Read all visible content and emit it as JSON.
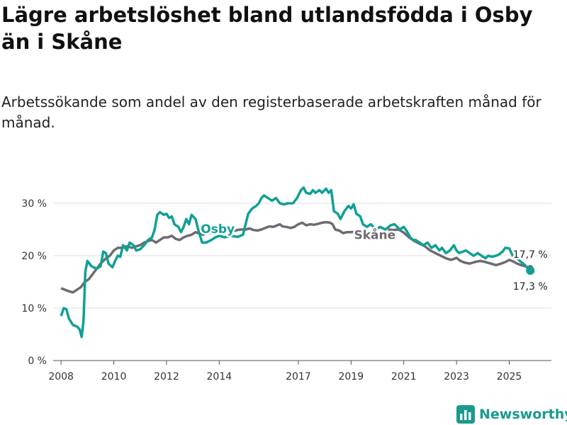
{
  "title": "Lägre arbetslöshet bland utlandsfödda i Osby än i Skåne",
  "subtitle": "Arbetssökande som andel av den registerbaserade arbetskraften månad för månad.",
  "logo": {
    "icon": "bar-chart-logo-icon",
    "text": "Newsworthy"
  },
  "colors": {
    "osby": "#10a095",
    "skane": "#6e6a72",
    "grid": "#dddddd"
  },
  "chart_data": {
    "type": "line",
    "title": "Lägre arbetslöshet bland utlandsfödda i Osby än i Skåne",
    "xlabel": "",
    "ylabel": "",
    "ylim": [
      0,
      35
    ],
    "xlim": [
      2007.7,
      2026.6
    ],
    "y_ticks": [
      {
        "value": 0,
        "label": "0 %"
      },
      {
        "value": 10,
        "label": "10 %"
      },
      {
        "value": 20,
        "label": "20 %"
      },
      {
        "value": 30,
        "label": "30 %"
      }
    ],
    "x_ticks": [
      {
        "value": 2008,
        "label": "2008"
      },
      {
        "value": 2010,
        "label": "2010"
      },
      {
        "value": 2012,
        "label": "2012"
      },
      {
        "value": 2014,
        "label": "2014"
      },
      {
        "value": 2017,
        "label": "2017"
      },
      {
        "value": 2019,
        "label": "2019"
      },
      {
        "value": 2021,
        "label": "2021"
      },
      {
        "value": 2023,
        "label": "2023"
      },
      {
        "value": 2025,
        "label": "2025"
      }
    ],
    "series": [
      {
        "name": "Osby",
        "label": "Osby",
        "end_label": "17,3 %",
        "points": [
          [
            2008.0,
            8.5
          ],
          [
            2008.1,
            10.0
          ],
          [
            2008.2,
            9.8
          ],
          [
            2008.3,
            8.0
          ],
          [
            2008.45,
            6.8
          ],
          [
            2008.6,
            6.5
          ],
          [
            2008.7,
            6.0
          ],
          [
            2008.78,
            4.5
          ],
          [
            2008.85,
            7.5
          ],
          [
            2008.92,
            17.0
          ],
          [
            2009.0,
            19.0
          ],
          [
            2009.15,
            18.0
          ],
          [
            2009.35,
            17.5
          ],
          [
            2009.5,
            18.0
          ],
          [
            2009.6,
            20.8
          ],
          [
            2009.7,
            20.5
          ],
          [
            2009.8,
            18.5
          ],
          [
            2009.95,
            17.8
          ],
          [
            2010.05,
            19.0
          ],
          [
            2010.15,
            20.0
          ],
          [
            2010.25,
            19.8
          ],
          [
            2010.35,
            22.0
          ],
          [
            2010.5,
            21.0
          ],
          [
            2010.6,
            22.5
          ],
          [
            2010.75,
            22.0
          ],
          [
            2010.85,
            21.0
          ],
          [
            2011.0,
            21.2
          ],
          [
            2011.15,
            22.0
          ],
          [
            2011.3,
            23.0
          ],
          [
            2011.45,
            23.5
          ],
          [
            2011.55,
            25.0
          ],
          [
            2011.65,
            27.8
          ],
          [
            2011.75,
            28.3
          ],
          [
            2011.9,
            27.8
          ],
          [
            2012.0,
            28.0
          ],
          [
            2012.1,
            27.2
          ],
          [
            2012.2,
            27.5
          ],
          [
            2012.3,
            26.0
          ],
          [
            2012.45,
            25.5
          ],
          [
            2012.55,
            24.5
          ],
          [
            2012.65,
            25.5
          ],
          [
            2012.75,
            27.0
          ],
          [
            2012.85,
            26.0
          ],
          [
            2012.95,
            27.8
          ],
          [
            2013.1,
            27.0
          ],
          [
            2013.2,
            25.0
          ],
          [
            2013.35,
            22.5
          ],
          [
            2013.5,
            22.5
          ],
          [
            2013.7,
            23.0
          ],
          [
            2013.85,
            23.5
          ],
          [
            2014.0,
            23.8
          ],
          [
            2014.2,
            23.5
          ],
          [
            2014.4,
            23.8
          ],
          [
            2014.7,
            23.6
          ],
          [
            2014.9,
            24.0
          ],
          [
            2015.1,
            28.0
          ],
          [
            2015.25,
            29.0
          ],
          [
            2015.4,
            29.5
          ],
          [
            2015.5,
            30.0
          ],
          [
            2015.6,
            31.0
          ],
          [
            2015.7,
            31.5
          ],
          [
            2015.85,
            31.0
          ],
          [
            2016.0,
            30.5
          ],
          [
            2016.15,
            31.0
          ],
          [
            2016.3,
            30.0
          ],
          [
            2016.45,
            29.8
          ],
          [
            2016.6,
            30.0
          ],
          [
            2016.8,
            30.0
          ],
          [
            2016.95,
            31.0
          ],
          [
            2017.1,
            32.5
          ],
          [
            2017.2,
            33.0
          ],
          [
            2017.3,
            32.0
          ],
          [
            2017.45,
            31.8
          ],
          [
            2017.55,
            32.5
          ],
          [
            2017.65,
            32.0
          ],
          [
            2017.8,
            32.5
          ],
          [
            2017.9,
            32.0
          ],
          [
            2018.05,
            32.8
          ],
          [
            2018.15,
            32.0
          ],
          [
            2018.25,
            32.5
          ],
          [
            2018.35,
            28.5
          ],
          [
            2018.5,
            28.0
          ],
          [
            2018.6,
            27.0
          ],
          [
            2018.75,
            28.5
          ],
          [
            2018.9,
            29.5
          ],
          [
            2019.0,
            29.0
          ],
          [
            2019.1,
            29.8
          ],
          [
            2019.2,
            28.0
          ],
          [
            2019.35,
            27.5
          ],
          [
            2019.45,
            26.0
          ],
          [
            2019.6,
            25.5
          ],
          [
            2019.75,
            26.0
          ],
          [
            2019.95,
            25.0
          ],
          [
            2020.1,
            25.5
          ],
          [
            2020.3,
            25.0
          ],
          [
            2020.5,
            25.8
          ],
          [
            2020.65,
            26.0
          ],
          [
            2020.75,
            25.5
          ],
          [
            2020.85,
            25.0
          ],
          [
            2021.0,
            25.5
          ],
          [
            2021.1,
            24.8
          ],
          [
            2021.25,
            23.5
          ],
          [
            2021.35,
            23.0
          ],
          [
            2021.45,
            23.0
          ],
          [
            2021.6,
            22.5
          ],
          [
            2021.75,
            22.0
          ],
          [
            2021.9,
            22.5
          ],
          [
            2022.05,
            21.5
          ],
          [
            2022.2,
            22.0
          ],
          [
            2022.35,
            21.0
          ],
          [
            2022.45,
            21.5
          ],
          [
            2022.6,
            20.5
          ],
          [
            2022.75,
            21.0
          ],
          [
            2022.9,
            22.0
          ],
          [
            2023.0,
            21.0
          ],
          [
            2023.1,
            20.5
          ],
          [
            2023.25,
            20.8
          ],
          [
            2023.35,
            21.0
          ],
          [
            2023.5,
            20.5
          ],
          [
            2023.65,
            20.0
          ],
          [
            2023.8,
            20.5
          ],
          [
            2023.95,
            20.0
          ],
          [
            2024.1,
            19.5
          ],
          [
            2024.2,
            20.0
          ],
          [
            2024.35,
            19.8
          ],
          [
            2024.5,
            20.0
          ],
          [
            2024.6,
            20.2
          ],
          [
            2024.75,
            20.8
          ],
          [
            2024.85,
            21.5
          ],
          [
            2025.0,
            21.4
          ],
          [
            2025.15,
            19.8
          ],
          [
            2025.3,
            19.5
          ],
          [
            2025.45,
            18.8
          ],
          [
            2025.6,
            18.2
          ],
          [
            2025.7,
            17.6
          ],
          [
            2025.8,
            17.3
          ]
        ]
      },
      {
        "name": "Skåne",
        "label": "Skåne",
        "end_label": "17,7 %",
        "points": [
          [
            2008.0,
            13.8
          ],
          [
            2008.15,
            13.5
          ],
          [
            2008.3,
            13.2
          ],
          [
            2008.45,
            13.0
          ],
          [
            2008.6,
            13.5
          ],
          [
            2008.75,
            14.0
          ],
          [
            2008.9,
            15.0
          ],
          [
            2009.05,
            15.5
          ],
          [
            2009.2,
            16.5
          ],
          [
            2009.35,
            17.5
          ],
          [
            2009.5,
            18.5
          ],
          [
            2009.7,
            19.5
          ],
          [
            2009.85,
            20.0
          ],
          [
            2010.0,
            21.0
          ],
          [
            2010.15,
            21.5
          ],
          [
            2010.3,
            21.5
          ],
          [
            2010.5,
            21.8
          ],
          [
            2010.7,
            21.5
          ],
          [
            2010.85,
            21.8
          ],
          [
            2011.0,
            22.0
          ],
          [
            2011.15,
            22.5
          ],
          [
            2011.3,
            22.8
          ],
          [
            2011.45,
            23.0
          ],
          [
            2011.6,
            22.5
          ],
          [
            2011.75,
            23.0
          ],
          [
            2011.9,
            23.5
          ],
          [
            2012.05,
            23.5
          ],
          [
            2012.2,
            23.8
          ],
          [
            2012.35,
            23.2
          ],
          [
            2012.5,
            23.0
          ],
          [
            2012.65,
            23.5
          ],
          [
            2012.8,
            23.8
          ],
          [
            2012.95,
            24.0
          ],
          [
            2013.1,
            24.5
          ],
          [
            2013.25,
            24.2
          ],
          [
            2013.4,
            24.0
          ],
          [
            2013.55,
            24.5
          ],
          [
            2013.7,
            24.3
          ],
          [
            2013.85,
            24.5
          ],
          [
            2014.0,
            24.8
          ],
          [
            2014.2,
            24.5
          ],
          [
            2014.4,
            24.6
          ],
          [
            2014.6,
            24.8
          ],
          [
            2014.8,
            25.0
          ],
          [
            2015.0,
            25.0
          ],
          [
            2015.15,
            25.2
          ],
          [
            2015.3,
            24.9
          ],
          [
            2015.45,
            24.8
          ],
          [
            2015.6,
            25.0
          ],
          [
            2015.75,
            25.3
          ],
          [
            2015.9,
            25.6
          ],
          [
            2016.05,
            25.5
          ],
          [
            2016.2,
            25.8
          ],
          [
            2016.3,
            26.0
          ],
          [
            2016.4,
            25.6
          ],
          [
            2016.55,
            25.5
          ],
          [
            2016.7,
            25.3
          ],
          [
            2016.85,
            25.5
          ],
          [
            2017.0,
            26.0
          ],
          [
            2017.15,
            26.3
          ],
          [
            2017.3,
            25.8
          ],
          [
            2017.45,
            26.0
          ],
          [
            2017.6,
            25.9
          ],
          [
            2017.75,
            26.1
          ],
          [
            2017.9,
            26.3
          ],
          [
            2018.05,
            26.4
          ],
          [
            2018.2,
            26.3
          ],
          [
            2018.3,
            26.0
          ],
          [
            2018.4,
            25.0
          ],
          [
            2018.55,
            24.8
          ],
          [
            2018.7,
            24.3
          ],
          [
            2018.85,
            24.5
          ],
          [
            2019.0,
            24.5
          ],
          [
            2019.2,
            24.6
          ]
        ]
      }
    ],
    "skane_tail": [
      [
        2020.4,
        25.0
      ],
      [
        2020.6,
        24.9
      ],
      [
        2020.8,
        25.0
      ],
      [
        2021.0,
        24.4
      ],
      [
        2021.2,
        23.5
      ],
      [
        2021.4,
        22.8
      ],
      [
        2021.6,
        22.3
      ],
      [
        2021.8,
        21.8
      ],
      [
        2022.0,
        21.0
      ],
      [
        2022.2,
        20.5
      ],
      [
        2022.4,
        20.0
      ],
      [
        2022.6,
        19.5
      ],
      [
        2022.8,
        19.2
      ],
      [
        2023.0,
        19.6
      ],
      [
        2023.15,
        19.0
      ],
      [
        2023.3,
        18.7
      ],
      [
        2023.5,
        18.5
      ],
      [
        2023.7,
        18.8
      ],
      [
        2023.9,
        19.0
      ],
      [
        2024.1,
        18.8
      ],
      [
        2024.3,
        18.5
      ],
      [
        2024.5,
        18.2
      ],
      [
        2024.7,
        18.5
      ],
      [
        2024.85,
        18.8
      ],
      [
        2025.0,
        19.2
      ],
      [
        2025.15,
        18.9
      ],
      [
        2025.3,
        18.5
      ],
      [
        2025.45,
        18.2
      ],
      [
        2025.6,
        18.0
      ],
      [
        2025.7,
        17.8
      ],
      [
        2025.8,
        17.7
      ]
    ]
  }
}
